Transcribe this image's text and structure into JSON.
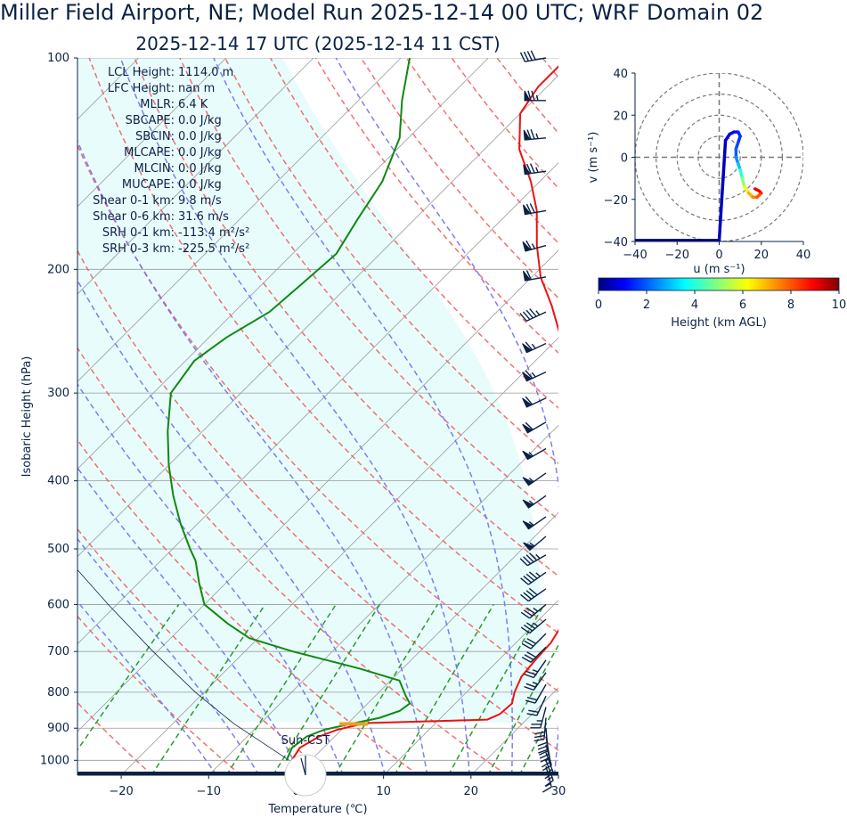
{
  "header": {
    "title": "Miller Field Airport, NE; Model Run 2025-12-14 00 UTC; WRF Domain 02",
    "subtitle": "2025-12-14 17 UTC  (2025-12-14 11 CST)"
  },
  "skewt": {
    "xlabel": "Temperature (℃)",
    "ylabel": "Isobaric Height (hPa)",
    "xlim": [
      -25,
      30
    ],
    "plim": [
      1050,
      100
    ],
    "xticks": [
      "−20",
      "−10",
      "0",
      "10",
      "20",
      "30"
    ],
    "xtick_values": [
      -20,
      -10,
      0,
      10,
      20,
      30
    ],
    "yticks": [
      "100",
      "200",
      "300",
      "400",
      "500",
      "600",
      "700",
      "800",
      "900",
      "1000"
    ],
    "ytick_values": [
      100,
      200,
      300,
      400,
      500,
      600,
      700,
      800,
      900,
      1000
    ],
    "grid": true,
    "skew_deg": 45,
    "colors": {
      "temperature": "#ee1111",
      "dewpoint": "#118811",
      "dry_adiabat": "#f06262",
      "moist_adiabat": "#7070f0",
      "mixing_ratio": "#2a9a2a",
      "cape_fill": "#e8fcfc",
      "isotherm": "#9a9a9a",
      "barb": "#0b2244",
      "parcel": "#0b2244",
      "sun_marker": "#f0a020"
    }
  },
  "indices": [
    {
      "label": "LCL Height:",
      "value": "1114.0 m"
    },
    {
      "label": "LFC Height:",
      "value": "nan m"
    },
    {
      "label": "MLLR:",
      "value": "6.4 K"
    },
    {
      "label": "SBCAPE:",
      "value": "0.0 J/kg"
    },
    {
      "label": "SBCIN:",
      "value": "0.0 J/kg"
    },
    {
      "label": "MLCAPE:",
      "value": "0.0 J/kg"
    },
    {
      "label": "MLCIN:",
      "value": "0.0 J/kg"
    },
    {
      "label": "MUCAPE:",
      "value": "0.0 J/kg"
    },
    {
      "label": "Shear 0-1 km:",
      "value": "9.8 m/s"
    },
    {
      "label": "Shear 0-6 km:",
      "value": "31.6 m/s"
    },
    {
      "label": "SRH 0-1 km:",
      "value": "-113.4 m²/s²"
    },
    {
      "label": "SRH 0-3 km:",
      "value": "-225.5 m²/s²"
    }
  ],
  "sun_label": "Sun-CST",
  "chart_data": [
    {
      "type": "line",
      "name": "skew-t",
      "series": [
        {
          "name": "temperature",
          "points": [
            [
              1000,
              -2.2
            ],
            [
              960,
              -2.7
            ],
            [
              925,
              -1.8
            ],
            [
              905,
              -0.5
            ],
            [
              885,
              2.0
            ],
            [
              875,
              15.5
            ],
            [
              860,
              16.3
            ],
            [
              830,
              16.5
            ],
            [
              800,
              15.5
            ],
            [
              760,
              14.5
            ],
            [
              720,
              14.2
            ],
            [
              680,
              14.0
            ],
            [
              640,
              13.2
            ],
            [
              600,
              12.0
            ],
            [
              560,
              10.4
            ],
            [
              520,
              8.2
            ],
            [
              480,
              5.2
            ],
            [
              440,
              2.0
            ],
            [
              400,
              -1.3
            ],
            [
              360,
              -5.2
            ],
            [
              330,
              -8.7
            ],
            [
              300,
              -12.0
            ],
            [
              260,
              -18.0
            ],
            [
              225,
              -24.5
            ],
            [
              205,
              -29.0
            ],
            [
              185,
              -33.0
            ],
            [
              165,
              -37.0
            ],
            [
              150,
              -41.0
            ],
            [
              135,
              -46.0
            ],
            [
              120,
              -50.0
            ],
            [
              110,
              -51.0
            ],
            [
              100,
              -51.0
            ]
          ]
        },
        {
          "name": "dewpoint",
          "points": [
            [
              1000,
              -2.8
            ],
            [
              960,
              -3.6
            ],
            [
              925,
              -3.2
            ],
            [
              905,
              -2.0
            ],
            [
              890,
              0.0
            ],
            [
              870,
              3.0
            ],
            [
              850,
              4.5
            ],
            [
              830,
              4.8
            ],
            [
              810,
              3.5
            ],
            [
              770,
              1.0
            ],
            [
              740,
              -5.0
            ],
            [
              700,
              -14.5
            ],
            [
              670,
              -21.0
            ],
            [
              640,
              -25.0
            ],
            [
              600,
              -30.0
            ],
            [
              560,
              -33.0
            ],
            [
              520,
              -36.0
            ],
            [
              500,
              -38.0
            ],
            [
              460,
              -42.0
            ],
            [
              420,
              -46.0
            ],
            [
              380,
              -50.0
            ],
            [
              340,
              -54.0
            ],
            [
              300,
              -58.0
            ],
            [
              270,
              -59.0
            ],
            [
              250,
              -58.0
            ],
            [
              230,
              -56.0
            ],
            [
              210,
              -55.5
            ],
            [
              190,
              -55.0
            ],
            [
              170,
              -56.5
            ],
            [
              150,
              -58.0
            ],
            [
              130,
              -61.0
            ],
            [
              115,
              -65.0
            ],
            [
              100,
              -69.0
            ]
          ]
        },
        {
          "name": "parcel",
          "points": [
            [
              1000,
              -2.5
            ],
            [
              887,
              -13.0
            ],
            [
              800,
              -21.0
            ],
            [
              700,
              -30.5
            ],
            [
              600,
              -41.0
            ],
            [
              500,
              -53.0
            ]
          ]
        }
      ],
      "wind_barbs": [
        {
          "p": 100,
          "speed_kt": 40,
          "dir": 260
        },
        {
          "p": 115,
          "speed_kt": 75,
          "dir": 270
        },
        {
          "p": 130,
          "speed_kt": 75,
          "dir": 265
        },
        {
          "p": 145,
          "speed_kt": 75,
          "dir": 262
        },
        {
          "p": 165,
          "speed_kt": 70,
          "dir": 260
        },
        {
          "p": 185,
          "speed_kt": 65,
          "dir": 255
        },
        {
          "p": 205,
          "speed_kt": 60,
          "dir": 260
        },
        {
          "p": 230,
          "speed_kt": 45,
          "dir": 245
        },
        {
          "p": 255,
          "speed_kt": 65,
          "dir": 245
        },
        {
          "p": 280,
          "speed_kt": 65,
          "dir": 245
        },
        {
          "p": 305,
          "speed_kt": 60,
          "dir": 245
        },
        {
          "p": 330,
          "speed_kt": 60,
          "dir": 240
        },
        {
          "p": 360,
          "speed_kt": 55,
          "dir": 240
        },
        {
          "p": 390,
          "speed_kt": 55,
          "dir": 235
        },
        {
          "p": 420,
          "speed_kt": 55,
          "dir": 235
        },
        {
          "p": 450,
          "speed_kt": 55,
          "dir": 235
        },
        {
          "p": 480,
          "speed_kt": 55,
          "dir": 230
        },
        {
          "p": 510,
          "speed_kt": 45,
          "dir": 240
        },
        {
          "p": 540,
          "speed_kt": 45,
          "dir": 235
        },
        {
          "p": 570,
          "speed_kt": 40,
          "dir": 235
        },
        {
          "p": 600,
          "speed_kt": 35,
          "dir": 230
        },
        {
          "p": 630,
          "speed_kt": 35,
          "dir": 230
        },
        {
          "p": 660,
          "speed_kt": 30,
          "dir": 225
        },
        {
          "p": 690,
          "speed_kt": 30,
          "dir": 225
        },
        {
          "p": 720,
          "speed_kt": 25,
          "dir": 215
        },
        {
          "p": 750,
          "speed_kt": 25,
          "dir": 215
        },
        {
          "p": 780,
          "speed_kt": 20,
          "dir": 210
        },
        {
          "p": 810,
          "speed_kt": 20,
          "dir": 205
        },
        {
          "p": 840,
          "speed_kt": 25,
          "dir": 195
        },
        {
          "p": 870,
          "speed_kt": 30,
          "dir": 185
        },
        {
          "p": 900,
          "speed_kt": 30,
          "dir": 175
        },
        {
          "p": 925,
          "speed_kt": 30,
          "dir": 170
        },
        {
          "p": 950,
          "speed_kt": 25,
          "dir": 165
        },
        {
          "p": 975,
          "speed_kt": 20,
          "dir": 160
        },
        {
          "p": 1000,
          "speed_kt": 15,
          "dir": 160
        },
        {
          "p": 1020,
          "speed_kt": 15,
          "dir": 165
        }
      ]
    },
    {
      "type": "scatter",
      "name": "hodograph",
      "xlabel": "u (m s⁻¹)",
      "ylabel": "v (m s⁻¹)",
      "xlim": [
        -40,
        40
      ],
      "ylim": [
        -40,
        40
      ],
      "xticks": [
        "−40",
        "−20",
        "0",
        "20",
        "40"
      ],
      "xtick_values": [
        -40,
        -20,
        0,
        20,
        40
      ],
      "yticks": [
        "40",
        "20",
        "0",
        "−20",
        "−40"
      ],
      "ytick_values": [
        40,
        20,
        0,
        -20,
        -40
      ],
      "rings": [
        10,
        20,
        30,
        40
      ],
      "points": [
        [
          -40,
          -39.5
        ],
        [
          -20,
          -39.5
        ],
        [
          0,
          -39.5
        ],
        [
          3,
          8
        ],
        [
          5,
          11
        ],
        [
          7,
          12
        ],
        [
          9,
          12
        ],
        [
          10,
          10
        ],
        [
          9,
          7
        ],
        [
          8,
          4
        ],
        [
          8,
          0
        ],
        [
          9,
          -3
        ],
        [
          10,
          -6
        ],
        [
          11,
          -10
        ],
        [
          12,
          -14
        ],
        [
          14,
          -17
        ],
        [
          16,
          -19
        ],
        [
          18,
          -19
        ],
        [
          20,
          -17
        ],
        [
          19,
          -16
        ],
        [
          17,
          -15
        ]
      ],
      "heights_km": [
        0,
        0,
        0,
        0.5,
        0.8,
        1.0,
        1.2,
        1.4,
        1.6,
        1.8,
        2.0,
        2.5,
        3.0,
        4.0,
        5.0,
        6.0,
        7.0,
        7.5,
        8.0,
        8.5,
        9.0
      ]
    }
  ],
  "colorbar": {
    "label": "Height (km AGL)",
    "ticks": [
      "0",
      "2",
      "4",
      "6",
      "8",
      "10"
    ],
    "tick_values": [
      0,
      2,
      4,
      6,
      8,
      10
    ],
    "range": [
      0,
      10
    ]
  }
}
